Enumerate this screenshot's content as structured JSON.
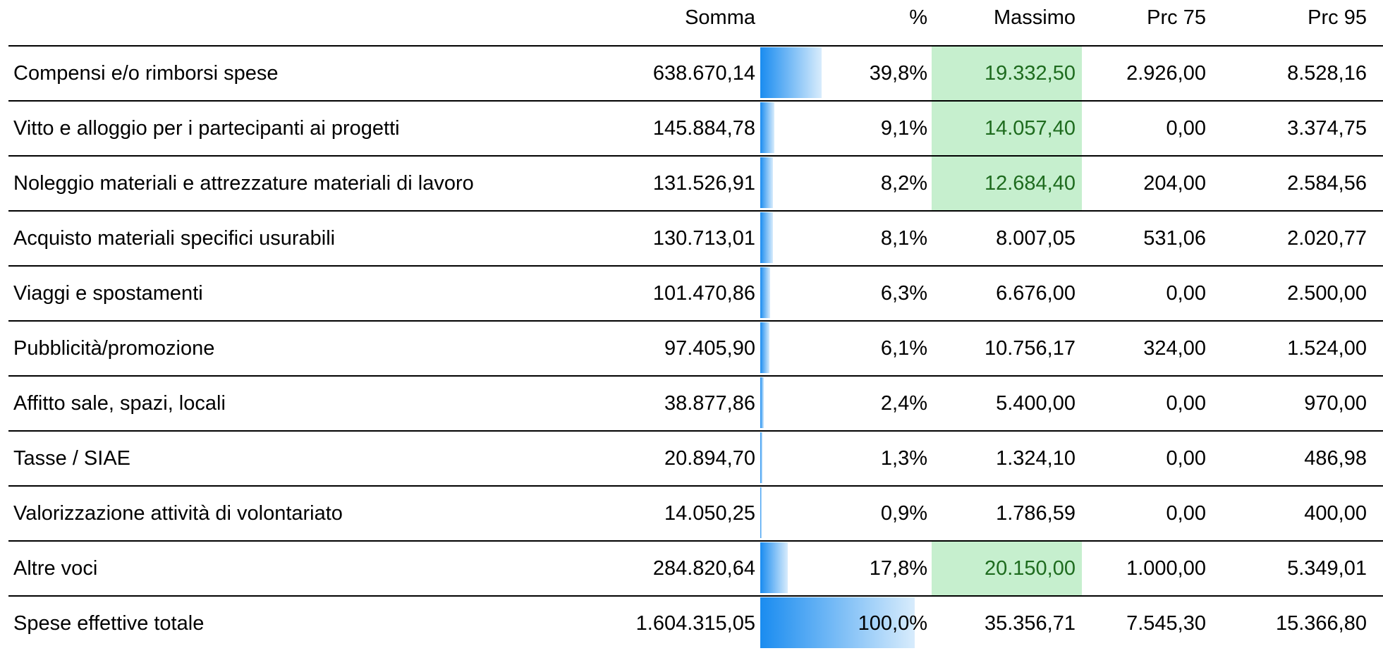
{
  "table": {
    "header": [
      "Somma",
      "%",
      "Massimo",
      "Prc 75",
      "Prc 95"
    ],
    "rows": [
      {
        "label": "Compensi e/o rimborsi spese",
        "somma": "638.670,14",
        "pct": 39.8,
        "pct_label": "39,8%",
        "massimo": "19.332,50",
        "prc75": "2.926,00",
        "prc95": "8.528,16",
        "highlight": true
      },
      {
        "label": "Vitto e alloggio per i partecipanti ai progetti",
        "somma": "145.884,78",
        "pct": 9.1,
        "pct_label": "9,1%",
        "massimo": "14.057,40",
        "prc75": "0,00",
        "prc95": "3.374,75",
        "highlight": true
      },
      {
        "label": "Noleggio materiali e attrezzature materiali di lavoro",
        "somma": "131.526,91",
        "pct": 8.2,
        "pct_label": "8,2%",
        "massimo": "12.684,40",
        "prc75": "204,00",
        "prc95": "2.584,56",
        "highlight": true
      },
      {
        "label": "Acquisto materiali specifici usurabili",
        "somma": "130.713,01",
        "pct": 8.1,
        "pct_label": "8,1%",
        "massimo": "8.007,05",
        "prc75": "531,06",
        "prc95": "2.020,77",
        "highlight": false
      },
      {
        "label": "Viaggi e spostamenti",
        "somma": "101.470,86",
        "pct": 6.3,
        "pct_label": "6,3%",
        "massimo": "6.676,00",
        "prc75": "0,00",
        "prc95": "2.500,00",
        "highlight": false
      },
      {
        "label": "Pubblicità/promozione",
        "somma": "97.405,90",
        "pct": 6.1,
        "pct_label": "6,1%",
        "massimo": "10.756,17",
        "prc75": "324,00",
        "prc95": "1.524,00",
        "highlight": false
      },
      {
        "label": "Affitto sale, spazi, locali",
        "somma": "38.877,86",
        "pct": 2.4,
        "pct_label": "2,4%",
        "massimo": "5.400,00",
        "prc75": "0,00",
        "prc95": "970,00",
        "highlight": false
      },
      {
        "label": "Tasse / SIAE",
        "somma": "20.894,70",
        "pct": 1.3,
        "pct_label": "1,3%",
        "massimo": "1.324,10",
        "prc75": "0,00",
        "prc95": "486,98",
        "highlight": false
      },
      {
        "label": "Valorizzazione attività di volontariato",
        "somma": "14.050,25",
        "pct": 0.9,
        "pct_label": "0,9%",
        "massimo": "1.786,59",
        "prc75": "0,00",
        "prc95": "400,00",
        "highlight": false
      },
      {
        "label": "Altre voci",
        "somma": "284.820,64",
        "pct": 17.8,
        "pct_label": "17,8%",
        "massimo": "20.150,00",
        "prc75": "1.000,00",
        "prc95": "5.349,01",
        "highlight": true
      },
      {
        "label": "Spese effettive totale",
        "somma": "1.604.315,05",
        "pct": 100.0,
        "pct_label": "100,0%",
        "massimo": "35.356,71",
        "prc75": "7.545,30",
        "prc95": "15.366,80",
        "highlight": false
      }
    ]
  }
}
